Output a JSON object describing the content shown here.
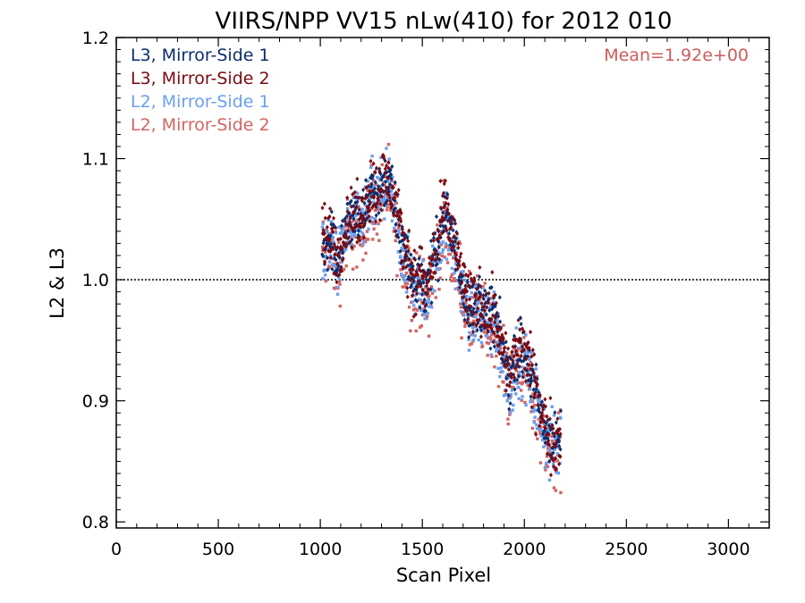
{
  "chart_data": {
    "type": "scatter",
    "title": "VIIRS/NPP VV15 nLw(410) for 2012 010",
    "xlabel": "Scan Pixel",
    "ylabel": "L2 & L3",
    "xlim": [
      0,
      3200
    ],
    "ylim": [
      0.795,
      1.2
    ],
    "x_ticks": [
      0,
      500,
      1000,
      1500,
      2000,
      2500,
      3000
    ],
    "x_tick_labels": [
      "0",
      "500",
      "1000",
      "1500",
      "2000",
      "2500",
      "3000"
    ],
    "y_ticks": [
      0.8,
      0.9,
      1.0,
      1.1,
      1.2
    ],
    "y_tick_labels": [
      "0.8",
      "0.9",
      "1.0",
      "1.1",
      "1.2"
    ],
    "reference_line": {
      "y": 1.0,
      "style": "dotted",
      "color": "#000000"
    },
    "annotation": {
      "text": "Mean=1.92e+00",
      "color": "#cd5c5c",
      "placement": "top-right"
    },
    "legend_placement": "top-left",
    "grid": false,
    "trend": {
      "x": [
        1010,
        1030,
        1050,
        1070,
        1090,
        1110,
        1130,
        1150,
        1170,
        1190,
        1210,
        1230,
        1250,
        1270,
        1290,
        1310,
        1330,
        1350,
        1370,
        1390,
        1410,
        1430,
        1450,
        1470,
        1490,
        1510,
        1530,
        1550,
        1570,
        1590,
        1610,
        1630,
        1650,
        1670,
        1690,
        1710,
        1730,
        1750,
        1770,
        1790,
        1810,
        1830,
        1850,
        1870,
        1890,
        1910,
        1930,
        1950,
        1970,
        1990,
        2010,
        2030,
        2050,
        2070,
        2090,
        2110,
        2130,
        2150,
        2170,
        2180
      ],
      "y": [
        1.03,
        1.025,
        1.035,
        1.02,
        1.015,
        1.03,
        1.04,
        1.045,
        1.05,
        1.04,
        1.05,
        1.06,
        1.075,
        1.065,
        1.07,
        1.08,
        1.075,
        1.07,
        1.05,
        1.035,
        1.02,
        1.015,
        1.0,
        0.99,
        1.005,
        0.985,
        0.995,
        1.01,
        1.02,
        1.04,
        1.05,
        1.04,
        1.03,
        1.015,
        1.0,
        0.985,
        0.975,
        0.97,
        0.98,
        0.975,
        0.97,
        0.965,
        0.97,
        0.955,
        0.94,
        0.925,
        0.915,
        0.93,
        0.94,
        0.935,
        0.93,
        0.92,
        0.905,
        0.895,
        0.88,
        0.87,
        0.865,
        0.86,
        0.865,
        0.87
      ]
    },
    "series": [
      {
        "name": "L3, Mirror-Side 1",
        "color": "#0b2d6b",
        "marker": "diamond",
        "offset": 0.004,
        "spread": 0.012
      },
      {
        "name": "L3, Mirror-Side 2",
        "color": "#7a0a12",
        "marker": "diamond",
        "offset": 0.006,
        "spread": 0.013
      },
      {
        "name": "L2, Mirror-Side 1",
        "color": "#6a9ff0",
        "marker": "square",
        "offset": -0.003,
        "spread": 0.014
      },
      {
        "name": "L2, Mirror-Side 2",
        "color": "#d26462",
        "marker": "square",
        "offset": -0.006,
        "spread": 0.016
      }
    ]
  }
}
